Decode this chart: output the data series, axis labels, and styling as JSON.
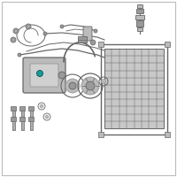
{
  "background_color": "#ffffff",
  "border_color": "#bbbbbb",
  "component_color": "#999999",
  "component_light": "#bbbbbb",
  "component_dark": "#666666",
  "highlight_color": "#1a9a9a",
  "line_color": "#666666",
  "figsize": [
    2.0,
    2.0
  ],
  "dpi": 100
}
